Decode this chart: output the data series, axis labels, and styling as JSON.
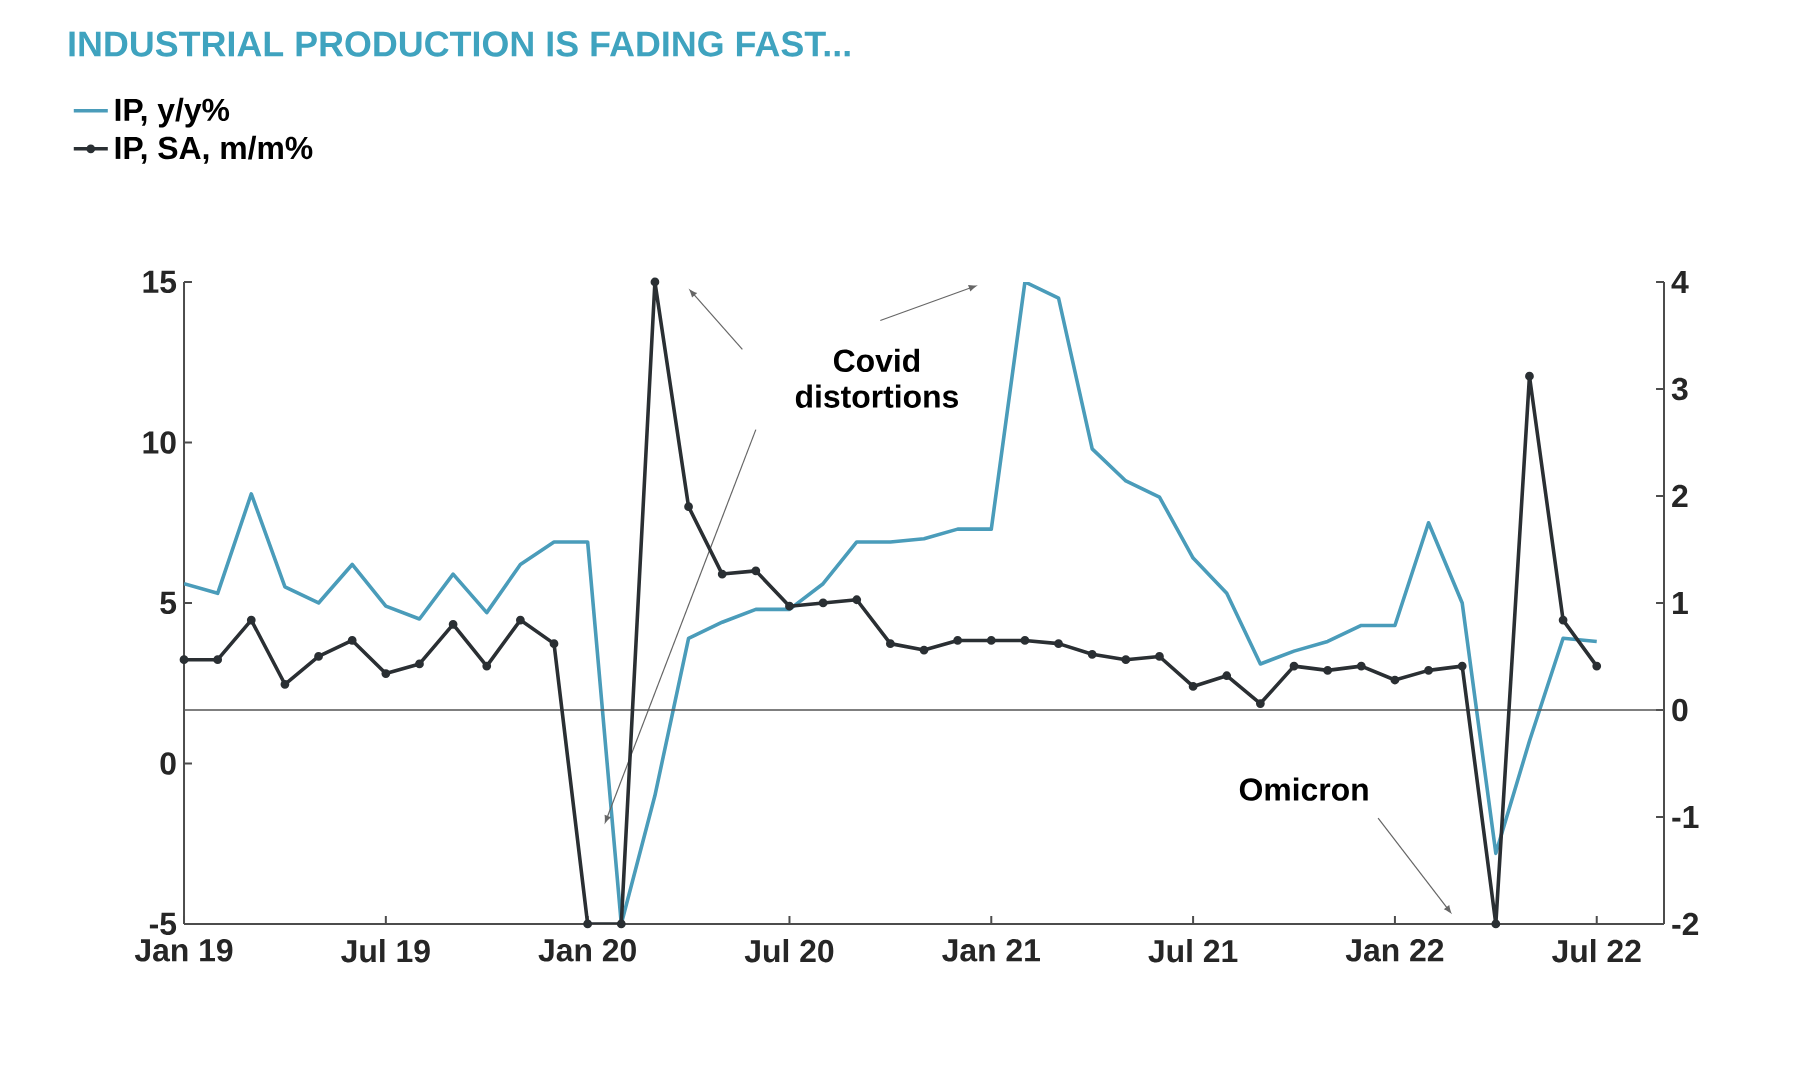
{
  "chart_data": {
    "type": "line",
    "title": "INDUSTRIAL PRODUCTION IS FADING FAST...",
    "x": [
      "2019-01",
      "2019-02",
      "2019-03",
      "2019-04",
      "2019-05",
      "2019-06",
      "2019-07",
      "2019-08",
      "2019-09",
      "2019-10",
      "2019-11",
      "2019-12",
      "2020-01",
      "2020-02",
      "2020-03",
      "2020-04",
      "2020-05",
      "2020-06",
      "2020-07",
      "2020-08",
      "2020-09",
      "2020-10",
      "2020-11",
      "2020-12",
      "2021-01",
      "2021-02",
      "2021-03",
      "2021-04",
      "2021-05",
      "2021-06",
      "2021-07",
      "2021-08",
      "2021-09",
      "2021-10",
      "2021-11",
      "2021-12",
      "2022-01",
      "2022-02",
      "2022-03",
      "2022-04",
      "2022-05",
      "2022-06",
      "2022-07"
    ],
    "series": [
      {
        "name": "IP, y/y%",
        "color": "#4a9cba",
        "marker": "none",
        "values": [
          5.6,
          5.3,
          8.4,
          5.5,
          5.0,
          6.2,
          4.9,
          4.5,
          5.9,
          4.7,
          6.2,
          6.9,
          6.9,
          -5,
          -1,
          3.9,
          4.4,
          4.8,
          4.8,
          5.6,
          6.9,
          6.9,
          7.0,
          7.3,
          7.3,
          15,
          14.5,
          9.8,
          8.8,
          8.3,
          6.4,
          5.3,
          3.1,
          3.5,
          3.8,
          4.3,
          4.3,
          7.5,
          5.0,
          -2.8,
          0.7,
          3.9,
          3.8
        ]
      },
      {
        "name": "IP, SA, m/m%",
        "color": "#2a2f33",
        "axis": "y2",
        "marker": "circle",
        "values": [
          0.47,
          0.47,
          0.84,
          0.24,
          0.5,
          0.65,
          0.34,
          0.43,
          0.8,
          0.41,
          0.84,
          0.62,
          -2,
          -2,
          4,
          1.9,
          1.27,
          1.3,
          0.97,
          1.0,
          1.03,
          0.62,
          0.56,
          0.65,
          0.65,
          0.65,
          0.62,
          0.52,
          0.47,
          0.5,
          0.22,
          0.32,
          0.06,
          0.41,
          0.37,
          0.41,
          0.28,
          0.37,
          0.41,
          -2,
          3.12,
          0.84,
          0.41
        ]
      }
    ],
    "xlim": [
      "2019-01",
      "2022-09"
    ],
    "xticks": [
      {
        "value": "2019-01",
        "label": "Jan 19"
      },
      {
        "value": "2019-07",
        "label": "Jul 19"
      },
      {
        "value": "2020-01",
        "label": "Jan 20"
      },
      {
        "value": "2020-07",
        "label": "Jul 20"
      },
      {
        "value": "2021-01",
        "label": "Jan 21"
      },
      {
        "value": "2021-07",
        "label": "Jul 21"
      },
      {
        "value": "2022-01",
        "label": "Jan 22"
      },
      {
        "value": "2022-07",
        "label": "Jul 22"
      }
    ],
    "ylim": [
      -5,
      15
    ],
    "yticks": [
      -5,
      0,
      5,
      10,
      15
    ],
    "y2lim": [
      -2,
      4
    ],
    "y2ticks": [
      -2,
      -1,
      0,
      1,
      2,
      3,
      4
    ],
    "ref_lines": [
      {
        "axis": "y2",
        "value": 0,
        "color": "#555555"
      }
    ],
    "annotations": [
      "Covid distortions",
      "Omicron"
    ],
    "legend": "top left",
    "grid": false
  }
}
